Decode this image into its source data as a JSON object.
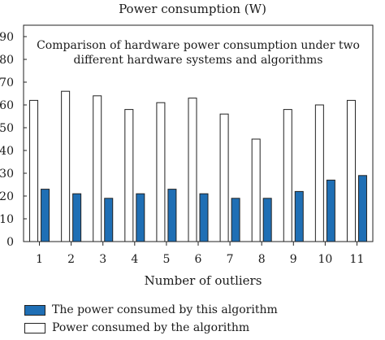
{
  "chart_data": {
    "type": "bar",
    "title": "Power consumption (W)",
    "subtitle_lines": [
      "Comparison of hardware power consumption under two",
      "different hardware systems and algorithms"
    ],
    "xlabel": "Number of outliers",
    "ylabel": "",
    "categories": [
      "1",
      "2",
      "3",
      "4",
      "5",
      "6",
      "7",
      "8",
      "9",
      "10",
      "11"
    ],
    "ylim": [
      0,
      95
    ],
    "yticks": [
      0,
      10,
      20,
      30,
      40,
      50,
      60,
      70,
      80,
      90
    ],
    "grid": false,
    "legend_position": "bottom",
    "series": [
      {
        "name": "Power consumed by the algorithm",
        "color": "#ffffff",
        "values": [
          62,
          66,
          64,
          58,
          61,
          63,
          56,
          45,
          58,
          60,
          62
        ]
      },
      {
        "name": "The power consumed by this algorithm",
        "color": "#1f6fb5",
        "values": [
          23,
          21,
          19,
          21,
          23,
          21,
          19,
          19,
          22,
          27,
          29
        ]
      }
    ],
    "legend_order": [
      1,
      0
    ]
  }
}
